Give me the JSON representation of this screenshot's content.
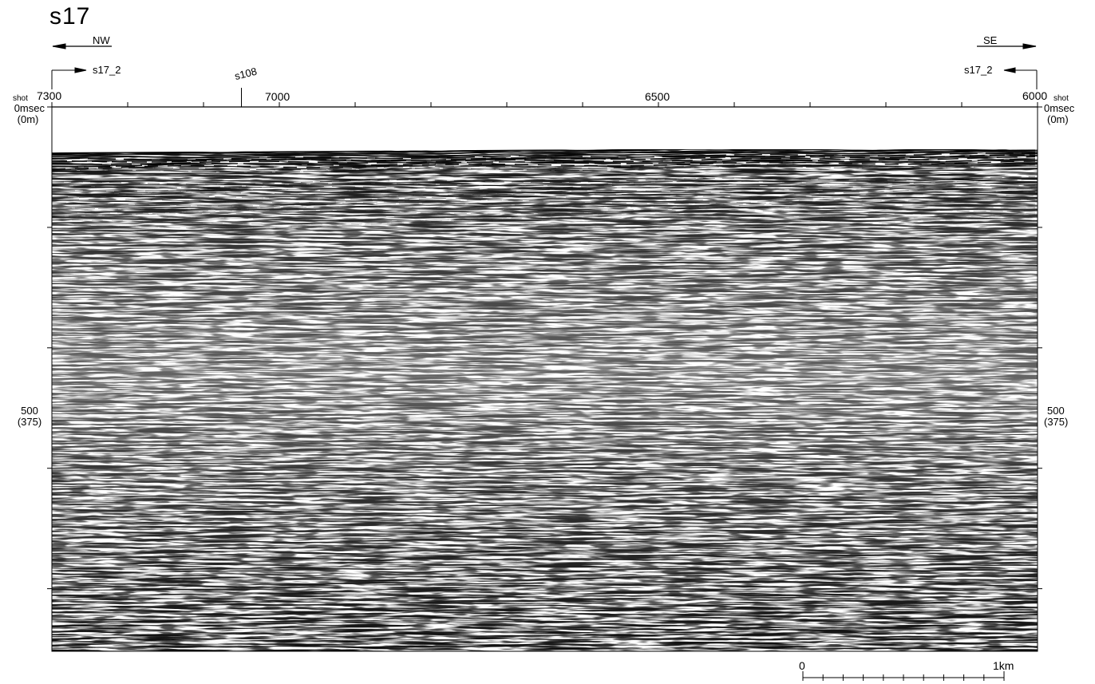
{
  "title": "s17",
  "direction": {
    "left": "NW",
    "right": "SE"
  },
  "cross_lines": {
    "left_label": "s17_2",
    "right_label": "s17_2",
    "intersect_label": "s108"
  },
  "shot_axis": {
    "word": "shot",
    "left_value": "7300",
    "right_value": "6000",
    "labels": [
      "7000",
      "6500"
    ],
    "values": [
      7300,
      7200,
      7100,
      7000,
      6900,
      6800,
      6700,
      6600,
      6500,
      6400,
      6300,
      6200,
      6100,
      6000
    ],
    "intersection_shot": 7050
  },
  "depth_axis": {
    "top_label": "0msec",
    "top_sub": "(0m)",
    "mid_label": "500",
    "mid_sub": "(375)",
    "ticks_msec": [
      0,
      100,
      200,
      300,
      400,
      500,
      600,
      700,
      800,
      900
    ]
  },
  "scale_bar": {
    "left": "0",
    "right": "1km",
    "divisions": 10
  },
  "colors": {
    "ink": "#000000",
    "paper": "#ffffff",
    "trace": "#1a1a1a"
  }
}
